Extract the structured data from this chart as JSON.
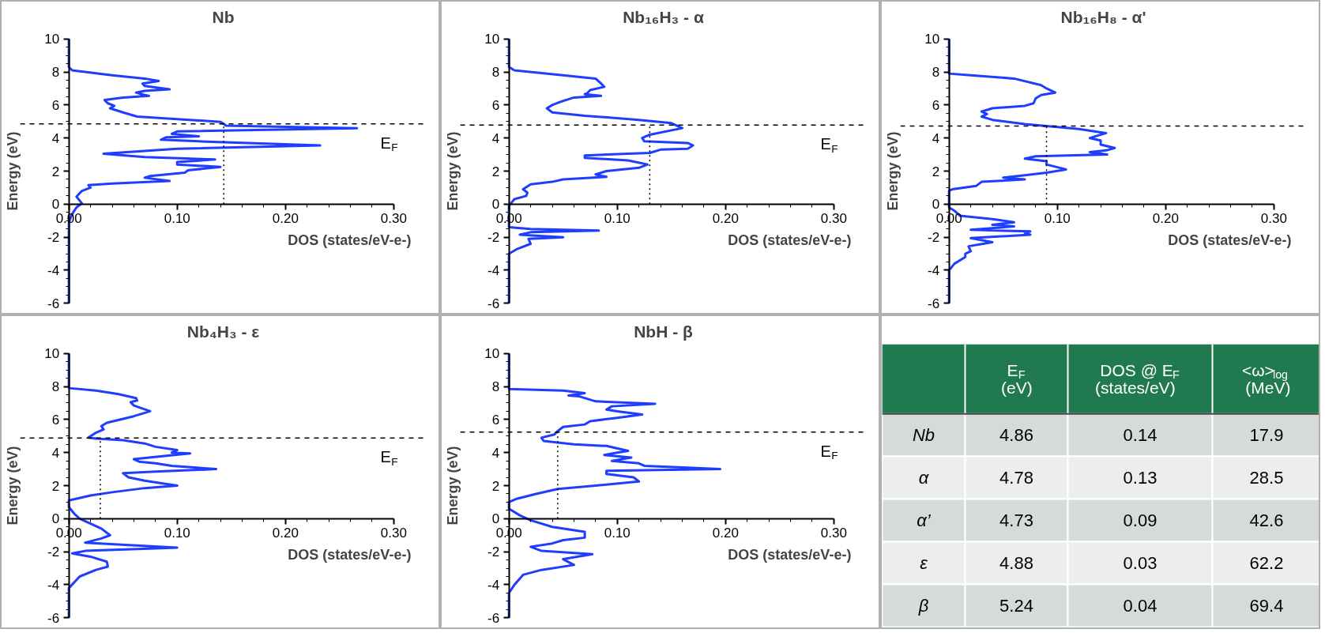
{
  "chart_data": [
    {
      "type": "line",
      "title": "Nb",
      "xlabel": "DOS (states/eV-e-)",
      "ylabel": "Energy (eV)",
      "xlim": [
        0,
        0.3
      ],
      "ylim": [
        -6,
        10
      ],
      "xticks": [
        {
          "value": 0,
          "label": "0.00"
        },
        {
          "value": 0.1,
          "label": "0.10"
        },
        {
          "value": 0.2,
          "label": "0.20"
        },
        {
          "value": 0.3,
          "label": "0.30"
        }
      ],
      "yticks": [
        -6,
        -4,
        -2,
        0,
        2,
        4,
        6,
        8,
        10
      ],
      "line_style": "solid",
      "series": [
        {
          "color": "#1f3dff",
          "x": [
            0,
            0,
            0.003,
            0.04,
            0.07,
            0.083,
            0.068,
            0.07,
            0.093,
            0.07,
            0.062,
            0.07,
            0.074,
            0.05,
            0.033,
            0.036,
            0.042,
            0.038,
            0.05,
            0.063,
            0.1,
            0.14,
            0.143,
            0.145,
            0.266,
            0.1,
            0.095,
            0.12,
            0.09,
            0.085,
            0.12,
            0.232,
            0.1,
            0.032,
            0.07,
            0.135,
            0.1,
            0.1,
            0.14,
            0.11,
            0.107,
            0.075,
            0.07,
            0.093,
            0.04,
            0.018,
            0.02,
            0.012,
            0.007,
            0.012,
            0.007,
            0.003,
            0,
            0
          ],
          "values": [
            10,
            8.3,
            8.1,
            7.8,
            7.6,
            7.45,
            7.3,
            7.15,
            6.95,
            6.85,
            6.75,
            6.6,
            6.55,
            6.45,
            6.3,
            6.1,
            5.95,
            5.8,
            5.55,
            5.3,
            5.15,
            4.98,
            4.86,
            4.75,
            4.6,
            4.4,
            4.25,
            4.1,
            4.05,
            3.9,
            3.8,
            3.55,
            3.35,
            3.05,
            2.85,
            2.7,
            2.55,
            2.4,
            2.25,
            2.05,
            1.9,
            1.7,
            1.6,
            1.4,
            1.25,
            1.15,
            1.0,
            0.8,
            0.45,
            0.05,
            -0.2,
            -0.6,
            -1.1,
            -6
          ]
        },
        {
          "type": "line",
          "color": "#000000",
          "line_style": "dotted",
          "x": [
            0.143,
            0.143
          ],
          "values": [
            0,
            4.86
          ]
        }
      ],
      "ref_lines": [
        {
          "axis": "y",
          "value": 4.86,
          "label": "E$_{F}$",
          "line_style": "dashed",
          "color": "#000000"
        }
      ]
    },
    {
      "type": "line",
      "title": "Nb₁₆H₃ - α",
      "xlabel": "DOS (states/eV-e-)",
      "ylabel": "Energy (eV)",
      "xlim": [
        0,
        0.3
      ],
      "ylim": [
        -6,
        10
      ],
      "xticks": [
        {
          "value": 0,
          "label": "0.00"
        },
        {
          "value": 0.1,
          "label": "0.10"
        },
        {
          "value": 0.2,
          "label": "0.20"
        },
        {
          "value": 0.3,
          "label": "0.30"
        }
      ],
      "yticks": [
        -6,
        -4,
        -2,
        0,
        2,
        4,
        6,
        8,
        10
      ],
      "line_style": "solid",
      "series": [
        {
          "color": "#1f3dff",
          "x": [
            0,
            0,
            0.005,
            0.05,
            0.08,
            0.085,
            0.088,
            0.075,
            0.072,
            0.07,
            0.085,
            0.06,
            0.048,
            0.04,
            0.035,
            0.04,
            0.07,
            0.12,
            0.15,
            0.16,
            0.13,
            0.123,
            0.125,
            0.165,
            0.17,
            0.165,
            0.14,
            0.13,
            0.07,
            0.07,
            0.11,
            0.128,
            0.12,
            0.09,
            0.08,
            0.09,
            0.05,
            0.04,
            0.02,
            0.013,
            0.017,
            0.016,
            0.005,
            0,
            0,
            0.02,
            0.083,
            0.02,
            0.01,
            0.05,
            0.018,
            0.02,
            0.008,
            0,
            0
          ],
          "values": [
            10,
            8.3,
            8.1,
            7.8,
            7.6,
            7.3,
            7.1,
            6.9,
            6.7,
            6.65,
            6.55,
            6.45,
            6.2,
            6.0,
            5.8,
            5.55,
            5.35,
            5.1,
            4.9,
            4.6,
            4.2,
            4.0,
            3.8,
            3.7,
            3.55,
            3.35,
            3.3,
            3.1,
            2.95,
            2.8,
            2.65,
            2.4,
            2.2,
            2.0,
            1.8,
            1.65,
            1.5,
            1.35,
            1.2,
            0.9,
            0.7,
            0.5,
            0.3,
            -0.1,
            -1.4,
            -1.5,
            -1.6,
            -1.7,
            -1.85,
            -2.0,
            -2.1,
            -2.4,
            -2.7,
            -3.0,
            -6
          ]
        },
        {
          "type": "line",
          "color": "#000000",
          "line_style": "dotted",
          "x": [
            0.13,
            0.13
          ],
          "values": [
            0,
            4.78
          ]
        }
      ],
      "ref_lines": [
        {
          "axis": "y",
          "value": 4.78,
          "label": "E$_{F}$",
          "line_style": "dashed",
          "color": "#000000"
        }
      ]
    },
    {
      "type": "line",
      "title": "Nb₁₆H₈ - α'",
      "xlabel": "DOS (states/eV-e-)",
      "ylabel": "Energy (eV)",
      "xlim": [
        0,
        0.3
      ],
      "ylim": [
        -6,
        10
      ],
      "xticks": [
        {
          "value": 0,
          "label": "0.00"
        },
        {
          "value": 0.1,
          "label": "0.10"
        },
        {
          "value": 0.2,
          "label": "0.20"
        },
        {
          "value": 0.3,
          "label": "0.30"
        }
      ],
      "yticks": [
        -6,
        -4,
        -2,
        0,
        2,
        4,
        6,
        8,
        10
      ],
      "line_style": "solid",
      "series": [
        {
          "color": "#1f3dff",
          "x": [
            0,
            0,
            0.02,
            0.06,
            0.085,
            0.09,
            0.098,
            0.085,
            0.08,
            0.078,
            0.07,
            0.04,
            0.03,
            0.035,
            0.03,
            0.04,
            0.07,
            0.09,
            0.12,
            0.145,
            0.13,
            0.14,
            0.14,
            0.153,
            0.145,
            0.13,
            0.146,
            0.08,
            0.07,
            0.09,
            0.09,
            0.108,
            0.09,
            0.07,
            0.05,
            0.07,
            0.03,
            0.025,
            0.003,
            0,
            0,
            0.005,
            0.01,
            0.04,
            0.06,
            0.04,
            0.06,
            0.02,
            0.075,
            0.07,
            0.075,
            0.02,
            0.04,
            0.018,
            0.02,
            0.015,
            0.015,
            0.005,
            0,
            0
          ],
          "values": [
            10,
            7.9,
            7.8,
            7.6,
            7.2,
            7.0,
            6.75,
            6.6,
            6.4,
            6.1,
            5.95,
            5.8,
            5.6,
            5.45,
            5.3,
            5.1,
            4.85,
            4.73,
            4.55,
            4.3,
            4.0,
            3.85,
            3.6,
            3.4,
            3.25,
            3.15,
            3.0,
            2.9,
            2.75,
            2.6,
            2.4,
            2.1,
            1.9,
            1.75,
            1.6,
            1.5,
            1.35,
            1.1,
            0.9,
            0.8,
            -0.2,
            -0.4,
            -0.7,
            -0.9,
            -1.1,
            -1.25,
            -1.35,
            -1.55,
            -1.65,
            -1.75,
            -1.85,
            -2.05,
            -2.3,
            -2.55,
            -2.85,
            -3.0,
            -3.2,
            -3.6,
            -4.0,
            -6
          ]
        },
        {
          "type": "line",
          "color": "#000000",
          "line_style": "dotted",
          "x": [
            0.09,
            0.09
          ],
          "values": [
            0,
            4.73
          ]
        }
      ],
      "ref_lines": [
        {
          "axis": "y",
          "value": 4.73,
          "line_style": "dashed",
          "color": "#000000"
        }
      ]
    },
    {
      "type": "line",
      "title": "Nb₄H₃ - ε",
      "xlabel": "DOS (states/eV-e-)",
      "ylabel": "Energy (eV)",
      "xlim": [
        0,
        0.3
      ],
      "ylim": [
        -6,
        10
      ],
      "xticks": [
        {
          "value": 0,
          "label": "0.00"
        },
        {
          "value": 0.1,
          "label": "0.10"
        },
        {
          "value": 0.2,
          "label": "0.20"
        },
        {
          "value": 0.3,
          "label": "0.30"
        }
      ],
      "yticks": [
        -6,
        -4,
        -2,
        0,
        2,
        4,
        6,
        8,
        10
      ],
      "line_style": "solid",
      "series": [
        {
          "color": "#1f3dff",
          "x": [
            0,
            0,
            0.025,
            0.045,
            0.062,
            0.063,
            0.057,
            0.06,
            0.075,
            0.06,
            0.035,
            0.03,
            0.032,
            0.025,
            0.018,
            0.025,
            0.05,
            0.07,
            0.08,
            0.1,
            0.095,
            0.112,
            0.09,
            0.06,
            0.065,
            0.08,
            0.095,
            0.136,
            0.08,
            0.05,
            0.055,
            0.07,
            0.1,
            0.07,
            0.04,
            0.02,
            0,
            0,
            0.005,
            0.01,
            0.02,
            0.03,
            0.038,
            0.03,
            0.015,
            0.1,
            0.015,
            0.003,
            0.02,
            0.035,
            0.036,
            0.025,
            0.01,
            0,
            0
          ],
          "values": [
            10,
            7.9,
            7.75,
            7.55,
            7.3,
            7.15,
            7.05,
            6.85,
            6.5,
            6.2,
            5.8,
            5.6,
            5.4,
            5.2,
            4.9,
            4.85,
            4.75,
            4.55,
            4.35,
            4.15,
            4.0,
            3.95,
            3.8,
            3.6,
            3.45,
            3.35,
            3.2,
            3.0,
            2.85,
            2.75,
            2.5,
            2.3,
            2.0,
            1.85,
            1.6,
            1.4,
            1.1,
            0.7,
            0.3,
            0,
            -0.3,
            -0.6,
            -1.0,
            -1.2,
            -1.45,
            -1.75,
            -1.95,
            -2.1,
            -2.3,
            -2.6,
            -2.9,
            -3.1,
            -3.5,
            -4.2,
            -6
          ]
        },
        {
          "type": "line",
          "color": "#000000",
          "line_style": "dotted",
          "x": [
            0.029,
            0.029
          ],
          "values": [
            0,
            4.88
          ]
        }
      ],
      "ref_lines": [
        {
          "axis": "y",
          "value": 4.88,
          "label": "E$_{F}$",
          "line_style": "dashed",
          "color": "#000000"
        }
      ]
    },
    {
      "type": "line",
      "title": "NbH - β",
      "xlabel": "DOS (states/eV-e-)",
      "ylabel": "Energy (eV)",
      "xlim": [
        0,
        0.3
      ],
      "ylim": [
        -6,
        10
      ],
      "xticks": [
        {
          "value": 0,
          "label": "0.00"
        },
        {
          "value": 0.1,
          "label": "0.10"
        },
        {
          "value": 0.2,
          "label": "0.20"
        },
        {
          "value": 0.3,
          "label": "0.30"
        }
      ],
      "yticks": [
        -6,
        -4,
        -2,
        0,
        2,
        4,
        6,
        8,
        10
      ],
      "line_style": "solid",
      "series": [
        {
          "color": "#1f3dff",
          "x": [
            0,
            0,
            0.05,
            0.07,
            0.055,
            0.065,
            0.08,
            0.135,
            0.095,
            0.09,
            0.1,
            0.123,
            0.1,
            0.075,
            0.07,
            0.05,
            0.045,
            0.042,
            0.03,
            0.032,
            0.06,
            0.09,
            0.11,
            0.1,
            0.088,
            0.113,
            0.095,
            0.12,
            0.125,
            0.195,
            0.09,
            0.09,
            0.115,
            0.12,
            0.08,
            0.045,
            0.025,
            0.007,
            0,
            0,
            0.01,
            0.02,
            0.04,
            0.07,
            0.07,
            0.05,
            0.04,
            0.02,
            0.03,
            0.077,
            0.05,
            0.06,
            0.03,
            0.013,
            0.005,
            0,
            0
          ],
          "values": [
            10,
            7.85,
            7.75,
            7.6,
            7.45,
            7.4,
            7.1,
            6.95,
            6.8,
            6.6,
            6.5,
            6.3,
            6.1,
            5.9,
            5.7,
            5.55,
            5.3,
            5.1,
            4.9,
            4.7,
            4.5,
            4.4,
            4.1,
            4.0,
            3.85,
            3.7,
            3.5,
            3.35,
            3.2,
            3.0,
            2.9,
            2.7,
            2.5,
            2.25,
            2.0,
            1.8,
            1.5,
            1.2,
            1.0,
            0.6,
            0.2,
            -0.1,
            -0.5,
            -0.8,
            -1.15,
            -1.3,
            -1.5,
            -1.7,
            -1.95,
            -2.15,
            -2.45,
            -2.8,
            -3.1,
            -3.4,
            -4.0,
            -4.5,
            -6
          ]
        },
        {
          "type": "line",
          "color": "#000000",
          "line_style": "dotted",
          "x": [
            0.045,
            0.045
          ],
          "values": [
            0,
            5.24
          ]
        }
      ],
      "ref_lines": [
        {
          "axis": "y",
          "value": 5.24,
          "label": "E$_{F}$",
          "line_style": "dashed",
          "color": "#000000"
        }
      ]
    },
    {
      "type": "other",
      "categories": [
        null,
        "E$_{F}$\n(eV)",
        "DOS @ E$_{F}$\n(states/eV)",
        "<ω>$_{log}$\n(MeV)"
      ],
      "y_categories": [
        "Nb",
        "α",
        "α’",
        "ε",
        "β"
      ],
      "cell_labels": [
        [
          "4.86",
          "0.14",
          "17.9"
        ],
        [
          "4.78",
          "0.13",
          "28.5"
        ],
        [
          "4.73",
          "0.09",
          "42.6"
        ],
        [
          "4.88",
          "0.03",
          "62.2"
        ],
        [
          "5.24",
          "0.04",
          "69.4"
        ]
      ]
    }
  ]
}
